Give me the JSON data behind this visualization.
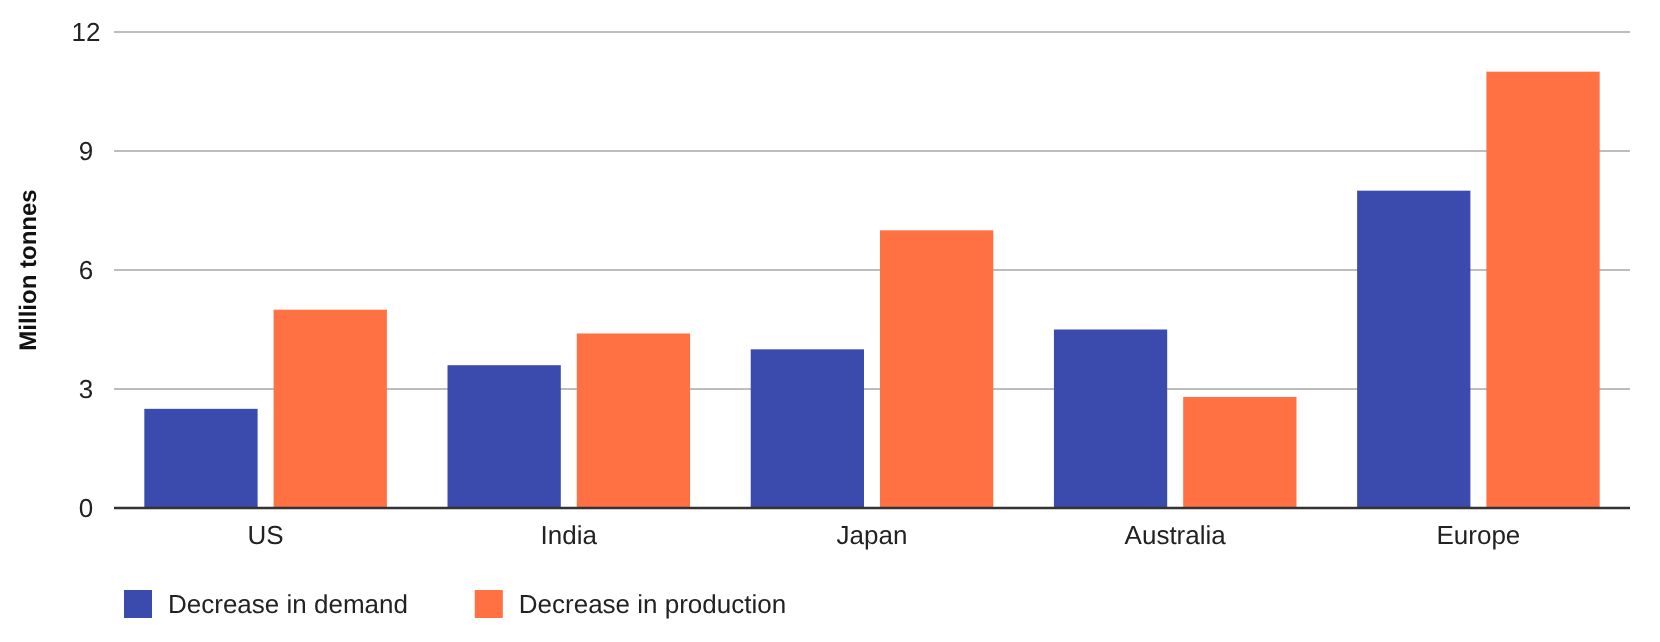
{
  "chart_data": {
    "type": "bar",
    "ylabel": "Million tonnes",
    "categories": [
      "US",
      "India",
      "Japan",
      "Australia",
      "Europe"
    ],
    "series": [
      {
        "name": "Decrease in demand",
        "color": "#3b4aad",
        "values": [
          2.5,
          3.6,
          4,
          4.5,
          8
        ]
      },
      {
        "name": "Decrease in production",
        "color": "#ff7043",
        "values": [
          5,
          4.4,
          7,
          2.8,
          11
        ]
      }
    ],
    "ylim": [
      0,
      12
    ],
    "yticks": [
      0,
      3,
      6,
      9,
      12
    ],
    "grid": "y",
    "legend": "bottom left"
  }
}
